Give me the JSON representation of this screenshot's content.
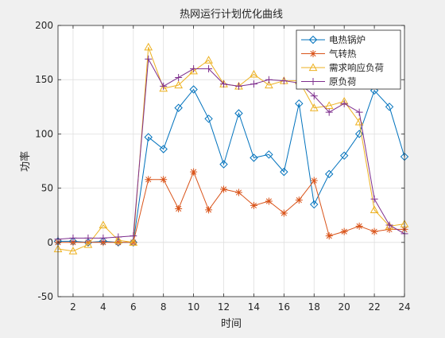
{
  "chart_data": {
    "type": "line",
    "title": "热网运行计划优化曲线",
    "xlabel": "时间",
    "ylabel": "功率",
    "xlim": [
      1,
      24
    ],
    "ylim": [
      -50,
      200
    ],
    "xticks": [
      2,
      4,
      6,
      8,
      10,
      12,
      14,
      16,
      18,
      20,
      22,
      24
    ],
    "yticks": [
      -50,
      0,
      50,
      100,
      150,
      200
    ],
    "grid": true,
    "legend_position": "top-right",
    "x": [
      1,
      2,
      3,
      4,
      5,
      6,
      7,
      8,
      9,
      10,
      11,
      12,
      13,
      14,
      15,
      16,
      17,
      18,
      19,
      20,
      21,
      22,
      23,
      24
    ],
    "series": [
      {
        "name": "电热锅炉",
        "color": "#0072BD",
        "marker": "diamond",
        "values": [
          1,
          1,
          0,
          1,
          0,
          0,
          97,
          86,
          124,
          141,
          114,
          72,
          119,
          78,
          81,
          65,
          128,
          35,
          63,
          80,
          100,
          140,
          125,
          79
        ]
      },
      {
        "name": "气转热",
        "color": "#D95319",
        "marker": "asterisk",
        "values": [
          0,
          0,
          0,
          0,
          0,
          0,
          58,
          58,
          31,
          65,
          30,
          49,
          46,
          34,
          38,
          27,
          39,
          57,
          6,
          10,
          15,
          10,
          12,
          12
        ]
      },
      {
        "name": "需求响应负荷",
        "color": "#EDB120",
        "marker": "triangle",
        "values": [
          -6,
          -8,
          -2,
          16,
          2,
          0,
          180,
          142,
          145,
          158,
          168,
          146,
          144,
          155,
          145,
          149,
          149,
          124,
          126,
          130,
          111,
          30,
          15,
          17
        ]
      },
      {
        "name": "原负荷",
        "color": "#7E2F8E",
        "marker": "plus",
        "values": [
          3,
          4,
          4,
          4,
          5,
          6,
          169,
          144,
          152,
          160,
          160,
          146,
          144,
          146,
          150,
          149,
          147,
          135,
          120,
          128,
          120,
          40,
          16,
          8
        ]
      }
    ]
  }
}
